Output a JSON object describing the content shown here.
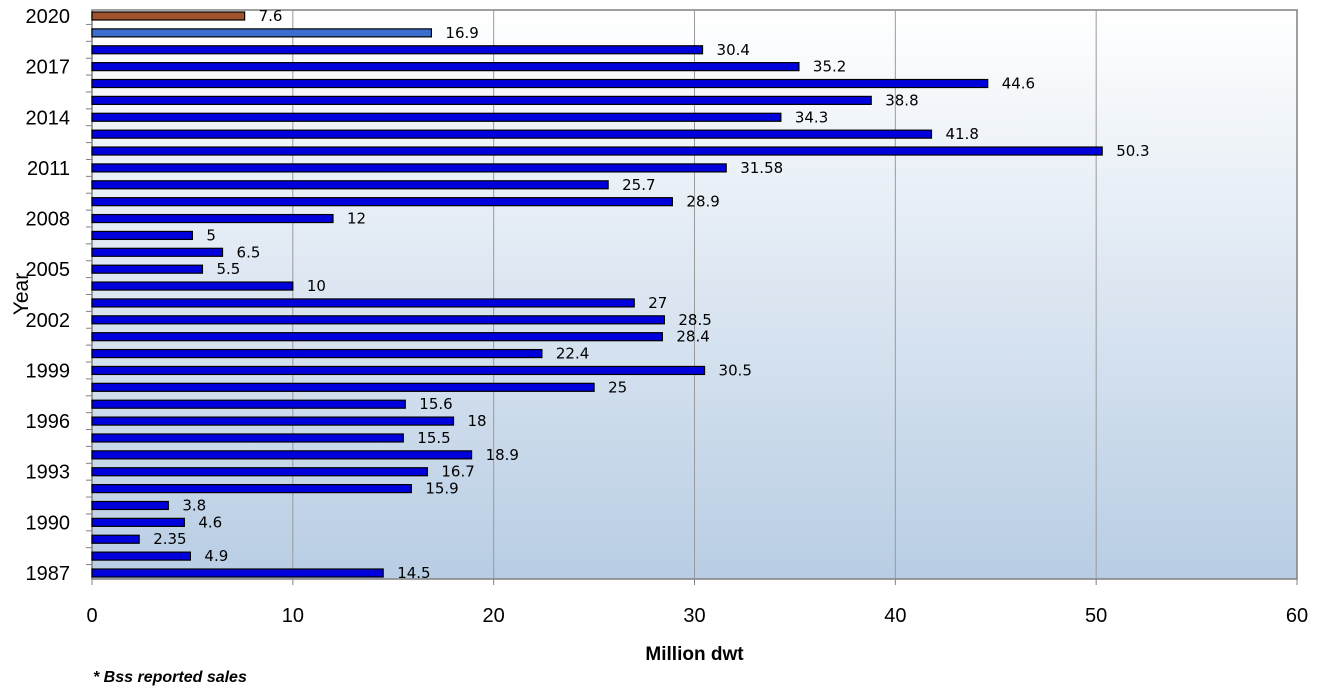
{
  "chart_data": {
    "type": "bar",
    "orientation": "horizontal",
    "categories": [
      "1987",
      "1988",
      "1989",
      "1990",
      "1991",
      "1992",
      "1993",
      "1994",
      "1995",
      "1996",
      "1997",
      "1998",
      "1999",
      "2000",
      "2001",
      "2002",
      "2003",
      "2004",
      "2005",
      "2006",
      "2007",
      "2008",
      "2009",
      "2010",
      "2011",
      "2012",
      "2013",
      "2014",
      "2015",
      "2016",
      "2017",
      "2018",
      "2019",
      "2020"
    ],
    "y_tick_labels": [
      "1987",
      "1990",
      "1993",
      "1996",
      "1999",
      "2002",
      "2005",
      "2008",
      "2011",
      "2014",
      "2017",
      "2020"
    ],
    "values": [
      14.5,
      4.9,
      2.35,
      4.6,
      3.8,
      15.9,
      16.7,
      18.9,
      15.5,
      18,
      15.6,
      25,
      30.5,
      22.4,
      28.4,
      28.5,
      27,
      10,
      5.5,
      6.5,
      5,
      12,
      28.9,
      25.7,
      31.58,
      50.3,
      41.8,
      34.3,
      38.8,
      44.6,
      35.2,
      30.4,
      16.9,
      7.6
    ],
    "data_labels": [
      "14.5",
      "4.9",
      "2.35",
      "4.6",
      "3.8",
      "15.9",
      "16.7",
      "18.9",
      "15.5",
      "18",
      "15.6",
      "25",
      "30.5",
      "22.4",
      "28.4",
      "28.5",
      "27",
      "10",
      "5.5",
      "6.5",
      "5",
      "12",
      "28.9",
      "25.7",
      "31.58",
      "50.3",
      "41.8",
      "34.3",
      "38.8",
      "44.6",
      "35.2",
      "30.4",
      "16.9",
      "7.6"
    ],
    "xlim": [
      0,
      60
    ],
    "x_ticks": [
      0,
      10,
      20,
      30,
      40,
      50,
      60
    ],
    "xlabel": "Million dwt",
    "ylabel": "Year",
    "grid": "vertical",
    "colors": {
      "default_bar": "#0000dd",
      "bar_2019": "#3a6fd0",
      "bar_2020": "#a0522d",
      "bar_outline": "#000000",
      "background_top": "#ffffff",
      "background_bottom": "#b8cde4"
    }
  },
  "footnote": "* Bss reported sales"
}
